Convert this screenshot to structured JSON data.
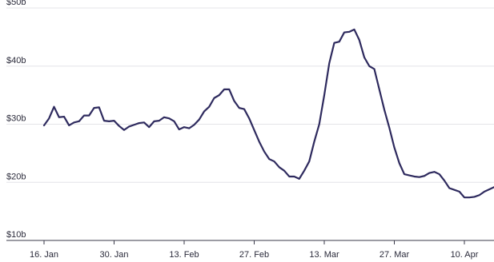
{
  "chart_data": {
    "type": "line",
    "title": "",
    "xlabel": "",
    "ylabel": "",
    "ylim": [
      10,
      50
    ],
    "y_ticks": [
      {
        "value": 50,
        "label": "$50b"
      },
      {
        "value": 40,
        "label": "$40b"
      },
      {
        "value": 30,
        "label": "$30b"
      },
      {
        "value": 20,
        "label": "$20b"
      },
      {
        "value": 10,
        "label": "$10b"
      }
    ],
    "x_ticks": [
      {
        "day": 0,
        "label": "16. Jan"
      },
      {
        "day": 14,
        "label": "30. Jan"
      },
      {
        "day": 28,
        "label": "13. Feb"
      },
      {
        "day": 42,
        "label": "27. Feb"
      },
      {
        "day": 56,
        "label": "13. Mar"
      },
      {
        "day": 70,
        "label": "27. Mar"
      },
      {
        "day": 84,
        "label": "10. Apr"
      }
    ],
    "grid": true,
    "line_color": "#2e2a5e",
    "series": [
      {
        "values": [
          29.8,
          31.0,
          33.0,
          31.2,
          31.3,
          29.8,
          30.3,
          30.5,
          31.5,
          31.5,
          32.8,
          32.9,
          30.6,
          30.5,
          30.6,
          29.7,
          29.0,
          29.6,
          29.9,
          30.2,
          30.3,
          29.5,
          30.5,
          30.6,
          31.2,
          31.0,
          30.5,
          29.1,
          29.5,
          29.3,
          29.9,
          30.8,
          32.2,
          33.0,
          34.5,
          35.0,
          36.0,
          36.0,
          34.0,
          32.8,
          32.6,
          31.0,
          29.0,
          27.0,
          25.3,
          24.0,
          23.6,
          22.6,
          22.0,
          21.0,
          21.0,
          20.6,
          22.0,
          23.6,
          27.0,
          30.0,
          35.0,
          40.5,
          44.0,
          44.2,
          45.8,
          45.9,
          46.3,
          44.5,
          41.5,
          40.0,
          39.5,
          36.0,
          32.5,
          29.4,
          26.0,
          23.3,
          21.4,
          21.2,
          21.0,
          20.9,
          21.1,
          21.6,
          21.8,
          21.4,
          20.3,
          19.0,
          18.7,
          18.4,
          17.4,
          17.4,
          17.5,
          17.8,
          18.4,
          18.8,
          19.2
        ]
      }
    ]
  }
}
